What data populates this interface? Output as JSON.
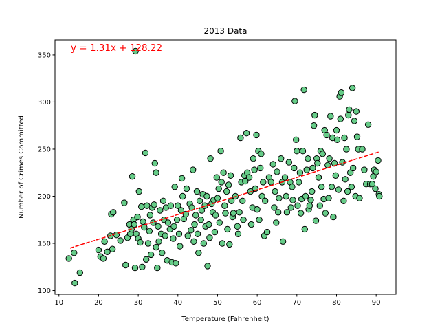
{
  "chart_data": {
    "type": "scatter",
    "title": "2013 Data",
    "xlabel": "Temperature (Fahrenheit)",
    "ylabel": "Number of Crimes Committed",
    "xlim": [
      9,
      95
    ],
    "ylim": [
      96,
      366
    ],
    "xticks": [
      10,
      20,
      30,
      40,
      50,
      60,
      70,
      80,
      90
    ],
    "yticks": [
      100,
      150,
      200,
      250,
      300,
      350
    ],
    "grid": false,
    "point_color": "#66CC88",
    "point_edge_color": "#000000",
    "regression": {
      "equation": "y = 1.31x + 128.22",
      "slope": 1.31,
      "intercept": 128.22,
      "x_range": [
        12.8,
        90.8
      ],
      "color": "#ff0000"
    },
    "points": [
      [
        29.3,
        354
      ],
      [
        12.5,
        134
      ],
      [
        14,
        108
      ],
      [
        15.3,
        119
      ],
      [
        13.8,
        140
      ],
      [
        20,
        143
      ],
      [
        20.5,
        136
      ],
      [
        21.2,
        134
      ],
      [
        21.5,
        152
      ],
      [
        22.2,
        141
      ],
      [
        23,
        158
      ],
      [
        23.2,
        181
      ],
      [
        23.5,
        144
      ],
      [
        23.7,
        183
      ],
      [
        24.5,
        159
      ],
      [
        25.5,
        153
      ],
      [
        26.5,
        193
      ],
      [
        26.8,
        127
      ],
      [
        27.3,
        156
      ],
      [
        27.8,
        170
      ],
      [
        28,
        160
      ],
      [
        28.3,
        165
      ],
      [
        28.5,
        221
      ],
      [
        28.8,
        175
      ],
      [
        29,
        170
      ],
      [
        29.2,
        124
      ],
      [
        29.5,
        160
      ],
      [
        29.8,
        178
      ],
      [
        30,
        155
      ],
      [
        30.2,
        205
      ],
      [
        30.5,
        151
      ],
      [
        30.8,
        189
      ],
      [
        31,
        125
      ],
      [
        31.2,
        173
      ],
      [
        31.5,
        167
      ],
      [
        31.8,
        246
      ],
      [
        32,
        133
      ],
      [
        32.2,
        190
      ],
      [
        32.5,
        150
      ],
      [
        32.8,
        163
      ],
      [
        33,
        180
      ],
      [
        33.2,
        138
      ],
      [
        33.5,
        188
      ],
      [
        33.8,
        172
      ],
      [
        34,
        191
      ],
      [
        34.2,
        235
      ],
      [
        34.5,
        146
      ],
      [
        34.8,
        124
      ],
      [
        34.5,
        225
      ],
      [
        35,
        168
      ],
      [
        35.2,
        152
      ],
      [
        35.5,
        185
      ],
      [
        35.8,
        160
      ],
      [
        36,
        140
      ],
      [
        36.3,
        195
      ],
      [
        36.5,
        175
      ],
      [
        36.8,
        158
      ],
      [
        37,
        188
      ],
      [
        37.3,
        132
      ],
      [
        37.5,
        172
      ],
      [
        38,
        165
      ],
      [
        38.2,
        190
      ],
      [
        38.5,
        130
      ],
      [
        38.8,
        155
      ],
      [
        39,
        168
      ],
      [
        39.2,
        210
      ],
      [
        39.5,
        129
      ],
      [
        39.8,
        175
      ],
      [
        40,
        190
      ],
      [
        40.3,
        160
      ],
      [
        40.5,
        147
      ],
      [
        40.8,
        185
      ],
      [
        41,
        219
      ],
      [
        41.2,
        200
      ],
      [
        41.5,
        176
      ],
      [
        42,
        181
      ],
      [
        42.2,
        208
      ],
      [
        42.5,
        158
      ],
      [
        43,
        192
      ],
      [
        43.3,
        164
      ],
      [
        43.5,
        188
      ],
      [
        43.8,
        228
      ],
      [
        44,
        152
      ],
      [
        44.2,
        170
      ],
      [
        44.5,
        180
      ],
      [
        44.8,
        205
      ],
      [
        45,
        160
      ],
      [
        45.2,
        140
      ],
      [
        45.5,
        195
      ],
      [
        45.8,
        175
      ],
      [
        46,
        185
      ],
      [
        46.3,
        202
      ],
      [
        46.5,
        150
      ],
      [
        46.8,
        190
      ],
      [
        47,
        168
      ],
      [
        47.3,
        200
      ],
      [
        47.5,
        126
      ],
      [
        47.8,
        170
      ],
      [
        48,
        156
      ],
      [
        48.2,
        240
      ],
      [
        48.5,
        192
      ],
      [
        48.8,
        183
      ],
      [
        49,
        196
      ],
      [
        49.3,
        162
      ],
      [
        49.5,
        180
      ],
      [
        49.8,
        220
      ],
      [
        50,
        198
      ],
      [
        50.3,
        208
      ],
      [
        50.5,
        172
      ],
      [
        50.8,
        248
      ],
      [
        51,
        215
      ],
      [
        51.2,
        150
      ],
      [
        51.5,
        225
      ],
      [
        51.8,
        190
      ],
      [
        52,
        182
      ],
      [
        52.3,
        205
      ],
      [
        52.5,
        165
      ],
      [
        52.8,
        212
      ],
      [
        53,
        149
      ],
      [
        53.3,
        222
      ],
      [
        53.5,
        195
      ],
      [
        53.8,
        178
      ],
      [
        54,
        182
      ],
      [
        54.5,
        200
      ],
      [
        55,
        168
      ],
      [
        55.2,
        160
      ],
      [
        55.5,
        183
      ],
      [
        55.8,
        262
      ],
      [
        56,
        215
      ],
      [
        56.3,
        195
      ],
      [
        56.5,
        175
      ],
      [
        56.8,
        222
      ],
      [
        57,
        216
      ],
      [
        57.3,
        267
      ],
      [
        57.5,
        225
      ],
      [
        58,
        220
      ],
      [
        58.3,
        205
      ],
      [
        58.5,
        170
      ],
      [
        58.8,
        188
      ],
      [
        59,
        240
      ],
      [
        59.3,
        228
      ],
      [
        59.5,
        208
      ],
      [
        59.8,
        265
      ],
      [
        60,
        186
      ],
      [
        60.3,
        248
      ],
      [
        60.5,
        175
      ],
      [
        60.8,
        230
      ],
      [
        61,
        245
      ],
      [
        61.2,
        200
      ],
      [
        61.5,
        215
      ],
      [
        61.8,
        158
      ],
      [
        62,
        195
      ],
      [
        62.5,
        162
      ],
      [
        63,
        220
      ],
      [
        63.5,
        215
      ],
      [
        64,
        234
      ],
      [
        64.3,
        188
      ],
      [
        64.5,
        205
      ],
      [
        64.8,
        172
      ],
      [
        65,
        226
      ],
      [
        65.3,
        183
      ],
      [
        65.5,
        198
      ],
      [
        66,
        240
      ],
      [
        66.3,
        215
      ],
      [
        66.5,
        152
      ],
      [
        67,
        220
      ],
      [
        67.3,
        200
      ],
      [
        67.5,
        183
      ],
      [
        68,
        236
      ],
      [
        68.3,
        215
      ],
      [
        68.5,
        188
      ],
      [
        68.8,
        210
      ],
      [
        69,
        196
      ],
      [
        69.3,
        230
      ],
      [
        69.5,
        301
      ],
      [
        69.8,
        260
      ],
      [
        70,
        248
      ],
      [
        70.2,
        190
      ],
      [
        70.5,
        215
      ],
      [
        70.8,
        225
      ],
      [
        71,
        182
      ],
      [
        71.2,
        197
      ],
      [
        71.5,
        248
      ],
      [
        71.8,
        313
      ],
      [
        72,
        165
      ],
      [
        72.2,
        200
      ],
      [
        72.5,
        228
      ],
      [
        72.8,
        240
      ],
      [
        73,
        186
      ],
      [
        73.2,
        190
      ],
      [
        73.5,
        196
      ],
      [
        73.8,
        205
      ],
      [
        74,
        230
      ],
      [
        74.3,
        275
      ],
      [
        74.5,
        286
      ],
      [
        74.8,
        174
      ],
      [
        75,
        240
      ],
      [
        75.2,
        235
      ],
      [
        75.5,
        220
      ],
      [
        75.8,
        190
      ],
      [
        76,
        248
      ],
      [
        76.2,
        210
      ],
      [
        76.5,
        245
      ],
      [
        76.8,
        197
      ],
      [
        77,
        270
      ],
      [
        77.2,
        182
      ],
      [
        77.5,
        265
      ],
      [
        77.8,
        233
      ],
      [
        78,
        198
      ],
      [
        78.2,
        240
      ],
      [
        78.5,
        285
      ],
      [
        78.8,
        210
      ],
      [
        79,
        262
      ],
      [
        79.2,
        178
      ],
      [
        79.5,
        235
      ],
      [
        79.8,
        222
      ],
      [
        80,
        270
      ],
      [
        80.2,
        260
      ],
      [
        80.5,
        207
      ],
      [
        80.8,
        306
      ],
      [
        81,
        282
      ],
      [
        81.2,
        310
      ],
      [
        81.5,
        236
      ],
      [
        81.8,
        195
      ],
      [
        82,
        262
      ],
      [
        82.2,
        218
      ],
      [
        82.5,
        250
      ],
      [
        82.8,
        205
      ],
      [
        83,
        286
      ],
      [
        83.2,
        292
      ],
      [
        83.5,
        225
      ],
      [
        83.8,
        210
      ],
      [
        84,
        315
      ],
      [
        84.2,
        230
      ],
      [
        84.5,
        280
      ],
      [
        84.8,
        200
      ],
      [
        85,
        290
      ],
      [
        85.2,
        263
      ],
      [
        85.5,
        250
      ],
      [
        85.8,
        198
      ],
      [
        86.5,
        250
      ],
      [
        87,
        228
      ],
      [
        87.5,
        213
      ],
      [
        88,
        276
      ],
      [
        88.5,
        213
      ],
      [
        89,
        213
      ],
      [
        89.3,
        221
      ],
      [
        89.5,
        228
      ],
      [
        89.8,
        208
      ],
      [
        90,
        226
      ],
      [
        90.5,
        238
      ],
      [
        90.7,
        202
      ],
      [
        90.8,
        200
      ]
    ]
  }
}
